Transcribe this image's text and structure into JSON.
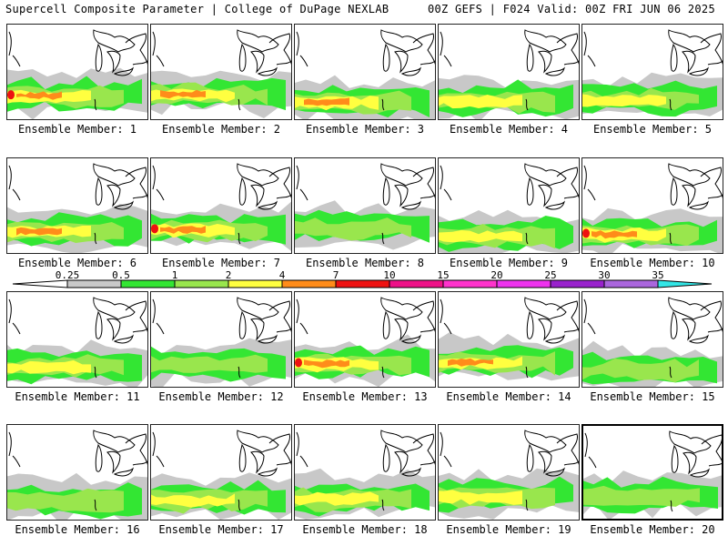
{
  "header": {
    "title": "Supercell Composite Parameter | College of DuPage NEXLAB",
    "run_info": "00Z GEFS | F024 Valid: 00Z FRI JUN 06 2025"
  },
  "colors": {
    "c0_25": "#c8c8c8",
    "c0_5": "#33e633",
    "c1": "#99e64d",
    "c2": "#ffff40",
    "c4": "#ff8c1a",
    "c7": "#ee1111",
    "c10": "#ee1188",
    "c15": "#ff33cc",
    "c20": "#ee33ee",
    "c25": "#9922cc",
    "c30": "#aa66dd",
    "c35": "#33e6e6"
  },
  "colorbar": {
    "labels": [
      "0.25",
      "0.5",
      "1",
      "2",
      "4",
      "7",
      "10",
      "15",
      "20",
      "25",
      "30",
      "35"
    ]
  },
  "panels": [
    {
      "label": "Ensemble Member: 1"
    },
    {
      "label": "Ensemble Member: 2"
    },
    {
      "label": "Ensemble Member: 3"
    },
    {
      "label": "Ensemble Member: 4"
    },
    {
      "label": "Ensemble Member: 5"
    },
    {
      "label": "Ensemble Member: 6"
    },
    {
      "label": "Ensemble Member: 7"
    },
    {
      "label": "Ensemble Member: 8"
    },
    {
      "label": "Ensemble Member: 9"
    },
    {
      "label": "Ensemble Member: 10"
    },
    {
      "label": "Ensemble Member: 11"
    },
    {
      "label": "Ensemble Member: 12"
    },
    {
      "label": "Ensemble Member: 13"
    },
    {
      "label": "Ensemble Member: 14"
    },
    {
      "label": "Ensemble Member: 15"
    },
    {
      "label": "Ensemble Member: 16"
    },
    {
      "label": "Ensemble Member: 17"
    },
    {
      "label": "Ensemble Member: 18"
    },
    {
      "label": "Ensemble Member: 19"
    },
    {
      "label": "Ensemble Member: 20"
    }
  ]
}
